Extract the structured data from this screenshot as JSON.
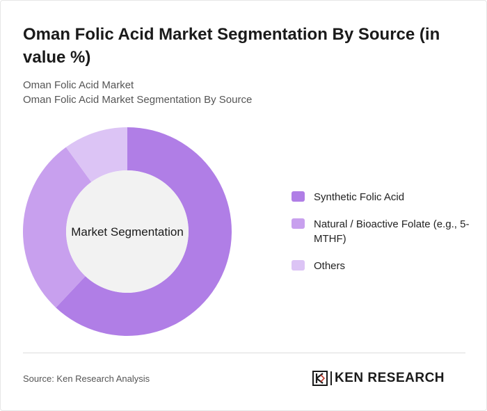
{
  "title": "Oman Folic Acid Market Segmentation By Source (in value %)",
  "subtitle_1": "Oman Folic Acid Market",
  "subtitle_2": "Oman Folic Acid Market Segmentation By Source",
  "source": "Source: Ken Research Analysis",
  "logo_text": "KEN RESEARCH",
  "chart_data": {
    "type": "pie",
    "center_label": "Market Segmentation",
    "series": [
      {
        "name": "Synthetic Folic Acid",
        "value": 62,
        "color": "#b07ee6"
      },
      {
        "name": "Natural / Bioactive Folate (e.g., 5-MTHF)",
        "value": 28,
        "color": "#c8a0ee"
      },
      {
        "name": "Others",
        "value": 10,
        "color": "#dcc4f5"
      }
    ],
    "legend_position": "right"
  }
}
